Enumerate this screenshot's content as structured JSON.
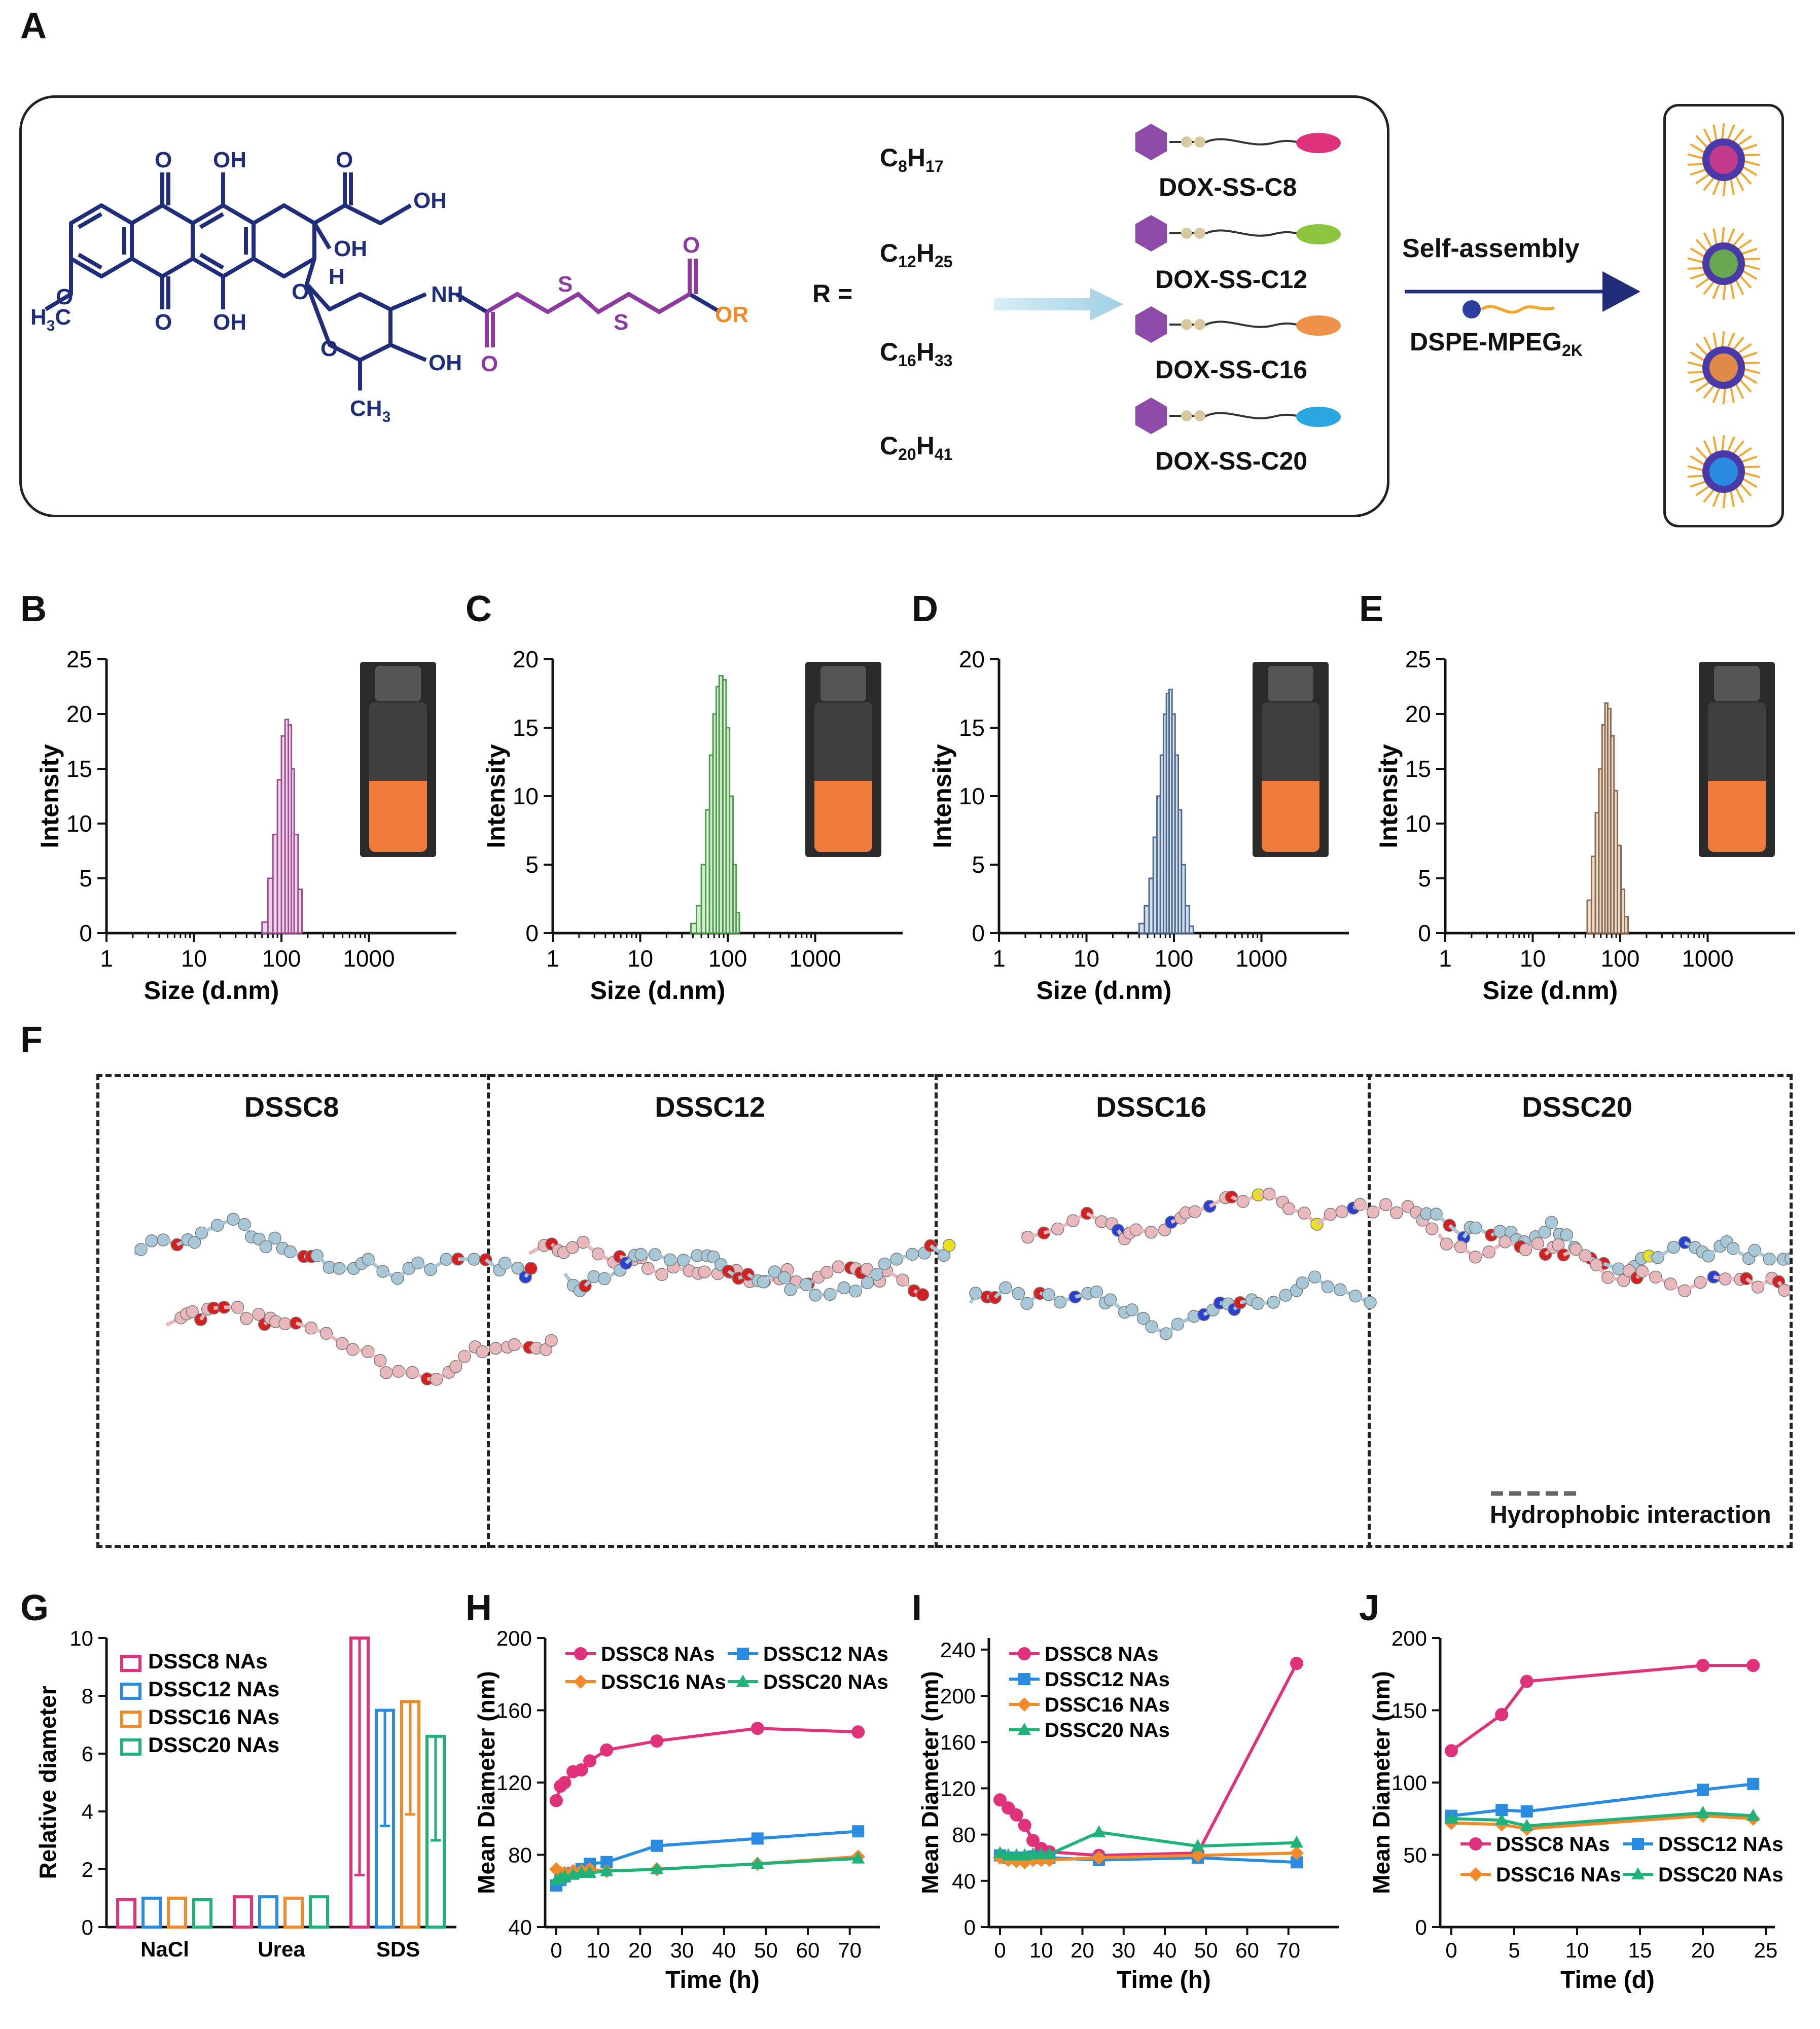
{
  "panels": {
    "A": "A",
    "B": "B",
    "C": "C",
    "D": "D",
    "E": "E",
    "F": "F",
    "G": "G",
    "H": "H",
    "I": "I",
    "J": "J"
  },
  "scheme": {
    "r_equals": "R =",
    "r_groups": [
      {
        "c": "C",
        "n1": "8",
        "h": "H",
        "n2": "17"
      },
      {
        "c": "C",
        "n1": "12",
        "h": "H",
        "n2": "25"
      },
      {
        "c": "C",
        "n1": "16",
        "h": "H",
        "n2": "33"
      },
      {
        "c": "C",
        "n1": "20",
        "h": "H",
        "n2": "41"
      }
    ],
    "prodrugs": [
      "DOX-SS-C8",
      "DOX-SS-C12",
      "DOX-SS-C16",
      "DOX-SS-C20"
    ],
    "tail_colors": [
      "#e0327a",
      "#8cc63f",
      "#f0914a",
      "#2aa6e0"
    ],
    "self_assembly": "Self-assembly",
    "dspe": "DSPE-MPEG",
    "dspe_sub": "2K",
    "mol_labels": {
      "o1": "O",
      "oh1": "OH",
      "o2": "O",
      "oh2": "OH",
      "oh3": "OH",
      "o3": "O",
      "oh4": "OH",
      "h": "H",
      "o4": "O",
      "h3c": "H",
      "h3c_sub": "3",
      "h3c_c": "C",
      "o5": "O",
      "nh": "NH",
      "o6": "O",
      "oh5": "OH",
      "ch3": "CH",
      "ch3_sub": "3",
      "s1": "S",
      "s2": "S",
      "o7": "O",
      "o8": "O",
      "or": "OR"
    }
  },
  "dls": {
    "ylabel": "Intensity",
    "xlabel": "Size (d.nm)",
    "xticks": [
      "1",
      "10",
      "100",
      "1000"
    ],
    "panels": [
      {
        "id": "B",
        "ymax": 25,
        "yticks": [
          "0",
          "5",
          "10",
          "15",
          "20",
          "25"
        ],
        "color": "#9c4f8e",
        "fill": "#f1d3ea",
        "x": [
          60,
          70,
          80,
          90,
          100,
          110,
          120,
          130,
          140,
          155
        ],
        "values": [
          1,
          5,
          9,
          14,
          18,
          19.5,
          19,
          15,
          9,
          4
        ]
      },
      {
        "id": "C",
        "ymax": 20,
        "yticks": [
          "0",
          "5",
          "10",
          "15",
          "20"
        ],
        "color": "#4f9a4f",
        "fill": "#d4ecd0",
        "x": [
          38,
          44,
          50,
          56,
          62,
          68,
          74,
          80,
          88,
          96,
          105,
          115,
          125
        ],
        "values": [
          0.7,
          2,
          5,
          9,
          13,
          16,
          18,
          18.8,
          18.5,
          15,
          10,
          5,
          1.5
        ]
      },
      {
        "id": "D",
        "ymax": 20,
        "yticks": [
          "0",
          "5",
          "10",
          "15",
          "20"
        ],
        "color": "#4e6a8c",
        "fill": "#d4deea",
        "x": [
          40,
          46,
          52,
          58,
          64,
          70,
          76,
          82,
          88,
          95,
          103,
          112,
          122,
          135,
          150
        ],
        "values": [
          0.7,
          2,
          4,
          7,
          10,
          13,
          16,
          17.5,
          17.8,
          16,
          13,
          9,
          5,
          2,
          0.5
        ]
      },
      {
        "id": "E",
        "ymax": 25,
        "yticks": [
          "0",
          "5",
          "10",
          "15",
          "20",
          "25"
        ],
        "color": "#8a6a50",
        "fill": "#eadbcb",
        "x": [
          42,
          47,
          52,
          57,
          62,
          67,
          72,
          78,
          85,
          93,
          102,
          112
        ],
        "values": [
          3,
          7,
          11,
          15,
          19,
          21,
          20.5,
          18,
          13,
          8,
          4,
          1.5
        ]
      }
    ]
  },
  "docking": {
    "titles": [
      "DSSC8",
      "DSSC12",
      "DSSC16",
      "DSSC20"
    ],
    "legend": "Hydrophobic interaction"
  },
  "chart_data": [
    {
      "id": "G",
      "type": "bar",
      "ylabel": "Relative diameter",
      "ylim": [
        0,
        10
      ],
      "yticks": [
        "0",
        "2",
        "4",
        "6",
        "8",
        "10"
      ],
      "categories": [
        "NaCl",
        "Urea",
        "SDS"
      ],
      "series": [
        {
          "name": "DSSC8 NAs",
          "color": "#e0327a",
          "values": [
            0.95,
            1.05,
            10
          ],
          "err": [
            0,
            0,
            8.2
          ]
        },
        {
          "name": "DSSC12 NAs",
          "color": "#2a8be0",
          "values": [
            1.0,
            1.05,
            7.5
          ],
          "err": [
            0,
            0,
            4.0
          ]
        },
        {
          "name": "DSSC16 NAs",
          "color": "#f08a2a",
          "values": [
            1.0,
            1.0,
            7.8
          ],
          "err": [
            0,
            0,
            3.9
          ]
        },
        {
          "name": "DSSC20 NAs",
          "color": "#1fb37a",
          "values": [
            0.95,
            1.05,
            6.6
          ],
          "err": [
            0,
            0,
            3.6
          ]
        }
      ]
    },
    {
      "id": "H",
      "type": "line",
      "xlabel": "Time (h)",
      "ylabel": "Mean Diameter (nm)",
      "xlim": [
        0,
        75
      ],
      "ylim": [
        40,
        200
      ],
      "xticks": [
        "0",
        "10",
        "20",
        "30",
        "40",
        "50",
        "60",
        "70"
      ],
      "yticks": [
        "40",
        "80",
        "120",
        "160",
        "200"
      ],
      "series": [
        {
          "name": "DSSC8 NAs",
          "color": "#e0327a",
          "marker": "circle",
          "x": [
            0,
            1,
            2,
            4,
            6,
            8,
            12,
            24,
            48,
            72
          ],
          "y": [
            110,
            118,
            120,
            126,
            127,
            132,
            138,
            143,
            150,
            148
          ]
        },
        {
          "name": "DSSC12 NAs",
          "color": "#2a8be0",
          "marker": "square",
          "x": [
            0,
            1,
            2,
            4,
            6,
            8,
            12,
            24,
            48,
            72
          ],
          "y": [
            63,
            66,
            68,
            70,
            72,
            75,
            76,
            85,
            89,
            93
          ]
        },
        {
          "name": "DSSC16 NAs",
          "color": "#f08a2a",
          "marker": "diamond",
          "x": [
            0,
            1,
            2,
            4,
            6,
            8,
            12,
            24,
            48,
            72
          ],
          "y": [
            72,
            70,
            70,
            71,
            71,
            72,
            71,
            72,
            75,
            79
          ]
        },
        {
          "name": "DSSC20 NAs",
          "color": "#1fb37a",
          "marker": "triangle",
          "x": [
            0,
            1,
            2,
            4,
            6,
            8,
            12,
            24,
            48,
            72
          ],
          "y": [
            66,
            67,
            68,
            69,
            70,
            70,
            71,
            72,
            75,
            78
          ]
        }
      ]
    },
    {
      "id": "I",
      "type": "line",
      "xlabel": "Time (h)",
      "ylabel": "Mean Diameter (nm)",
      "xlim": [
        0,
        80
      ],
      "ylim": [
        0,
        250
      ],
      "xticks": [
        "0",
        "10",
        "20",
        "30",
        "40",
        "50",
        "60",
        "70"
      ],
      "yticks": [
        "0",
        "40",
        "80",
        "120",
        "160",
        "200",
        "240"
      ],
      "series": [
        {
          "name": "DSSC8 NAs",
          "color": "#e0327a",
          "marker": "circle",
          "x": [
            0,
            2,
            4,
            6,
            8,
            10,
            12,
            24,
            48,
            72
          ],
          "y": [
            110,
            103,
            97,
            88,
            75,
            68,
            65,
            62,
            64,
            228
          ]
        },
        {
          "name": "DSSC12 NAs",
          "color": "#2a8be0",
          "marker": "square",
          "x": [
            0,
            2,
            4,
            6,
            8,
            10,
            12,
            24,
            48,
            72
          ],
          "y": [
            62,
            60,
            60,
            60,
            61,
            60,
            60,
            58,
            60,
            56
          ]
        },
        {
          "name": "DSSC16 NAs",
          "color": "#f08a2a",
          "marker": "diamond",
          "x": [
            0,
            2,
            4,
            6,
            8,
            10,
            12,
            24,
            48,
            72
          ],
          "y": [
            60,
            58,
            57,
            56,
            58,
            58,
            58,
            60,
            62,
            64
          ]
        },
        {
          "name": "DSSC20 NAs",
          "color": "#1fb37a",
          "marker": "triangle",
          "x": [
            0,
            2,
            4,
            6,
            8,
            10,
            12,
            24,
            48,
            72
          ],
          "y": [
            64,
            62,
            62,
            62,
            63,
            63,
            63,
            82,
            70,
            73
          ]
        }
      ]
    },
    {
      "id": "J",
      "type": "line",
      "xlabel": "Time (d)",
      "ylabel": "Mean Diameter (nm)",
      "xlim": [
        0,
        25
      ],
      "ylim": [
        0,
        200
      ],
      "xticks": [
        "0",
        "5",
        "10",
        "15",
        "20",
        "25"
      ],
      "yticks": [
        "0",
        "50",
        "100",
        "150",
        "200"
      ],
      "series": [
        {
          "name": "DSSC8 NAs",
          "color": "#e0327a",
          "marker": "circle",
          "x": [
            0,
            4,
            6,
            20,
            24
          ],
          "y": [
            122,
            147,
            170,
            181,
            181
          ]
        },
        {
          "name": "DSSC12 NAs",
          "color": "#2a8be0",
          "marker": "square",
          "x": [
            0,
            4,
            6,
            20,
            24
          ],
          "y": [
            77,
            81,
            80,
            95,
            99
          ]
        },
        {
          "name": "DSSC16 NAs",
          "color": "#f08a2a",
          "marker": "diamond",
          "x": [
            0,
            4,
            6,
            20,
            24
          ],
          "y": [
            72,
            71,
            68,
            77,
            75
          ]
        },
        {
          "name": "DSSC20 NAs",
          "color": "#1fb37a",
          "marker": "triangle",
          "x": [
            0,
            4,
            6,
            20,
            24
          ],
          "y": [
            75,
            74,
            70,
            79,
            77
          ]
        }
      ]
    }
  ]
}
